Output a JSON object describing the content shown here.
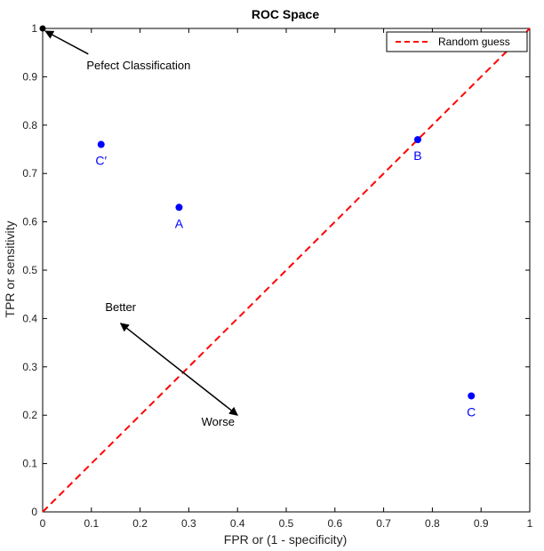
{
  "chart_data": {
    "type": "scatter",
    "title": "ROC Space",
    "xlabel": "FPR or (1 - specificity)",
    "ylabel": "TPR or sensitivity",
    "xlim": [
      0,
      1
    ],
    "ylim": [
      0,
      1
    ],
    "x_ticks": [
      "0",
      "0.1",
      "0.2",
      "0.3",
      "0.4",
      "0.5",
      "0.6",
      "0.7",
      "0.8",
      "0.9",
      "1"
    ],
    "y_ticks": [
      "0",
      "0.1",
      "0.2",
      "0.3",
      "0.4",
      "0.5",
      "0.6",
      "0.7",
      "0.8",
      "0.9",
      "1"
    ],
    "grid": false,
    "legend": {
      "position": "top-right",
      "entries": [
        "Random guess"
      ]
    },
    "series": [
      {
        "points": [
          {
            "label": "A",
            "x": 0.28,
            "y": 0.63
          },
          {
            "label": "B",
            "x": 0.77,
            "y": 0.77
          },
          {
            "label": "C",
            "x": 0.88,
            "y": 0.24
          },
          {
            "label": "C′",
            "x": 0.12,
            "y": 0.76
          }
        ],
        "color": "#0000ff"
      },
      {
        "name": "Random guess",
        "x": [
          0,
          1
        ],
        "y": [
          0,
          1
        ],
        "style": "dashed",
        "color": "#ff0000"
      }
    ],
    "perfect_point": {
      "x": 0,
      "y": 1
    },
    "annotations": [
      {
        "text": "Pefect Classification",
        "x": 0.09,
        "y": 0.925,
        "arrow_to": [
          0,
          1
        ]
      },
      {
        "text": "Better",
        "x": 0.16,
        "y": 0.415
      },
      {
        "text": "Worse",
        "x": 0.36,
        "y": 0.178
      }
    ],
    "diagonal_arrow": {
      "from": [
        0.16,
        0.39
      ],
      "to": [
        0.4,
        0.2
      ]
    }
  }
}
